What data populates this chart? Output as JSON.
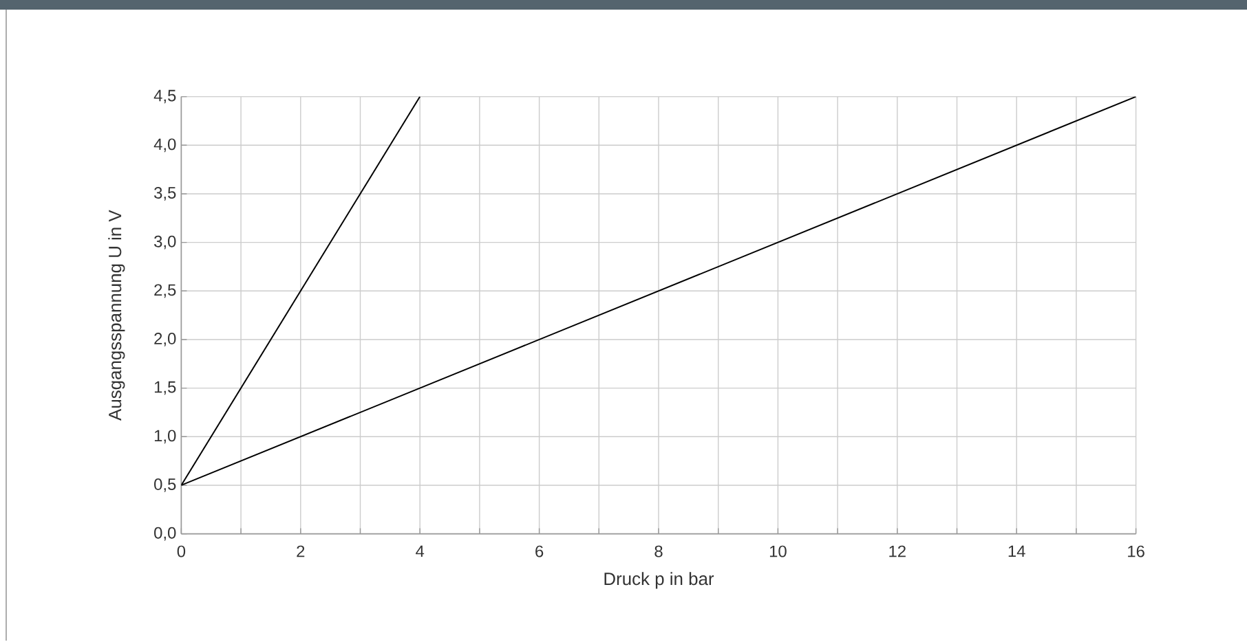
{
  "chart_data": {
    "type": "line",
    "xlabel": "Druck p in bar",
    "ylabel": "Ausgangsspannung U in V",
    "series": [
      {
        "x": [
          0,
          4
        ],
        "values": [
          0.5,
          4.5
        ],
        "color": "#000000"
      },
      {
        "x": [
          0,
          16
        ],
        "values": [
          0.5,
          4.5
        ],
        "color": "#000000"
      }
    ],
    "xlim": [
      0,
      16
    ],
    "ylim": [
      0,
      4.5
    ],
    "xticks": [
      0,
      {
        "value": 1,
        "label": null
      },
      2,
      {
        "value": 3,
        "label": null
      },
      4,
      {
        "value": 5,
        "label": null
      },
      6,
      {
        "value": 7,
        "label": null
      },
      8,
      {
        "value": 9,
        "label": null
      },
      10,
      {
        "value": 11,
        "label": null
      },
      12,
      {
        "value": 13,
        "label": null
      },
      14,
      {
        "value": 15,
        "label": null
      },
      16
    ],
    "yticks": [
      {
        "value": 0,
        "label": "0,0"
      },
      {
        "value": 0.5,
        "label": "0,5"
      },
      {
        "value": 1,
        "label": "1,0"
      },
      {
        "value": 1.5,
        "label": "1,5"
      },
      {
        "value": 2,
        "label": "2,0"
      },
      {
        "value": 2.5,
        "label": "2,5"
      },
      {
        "value": 3,
        "label": "3,0"
      },
      {
        "value": 3.5,
        "label": "3,5"
      },
      {
        "value": 4,
        "label": "4,0"
      },
      {
        "value": 4.5,
        "label": "4,5"
      }
    ],
    "grid": true,
    "legend": false,
    "marker": "none",
    "line_style": "solid"
  }
}
